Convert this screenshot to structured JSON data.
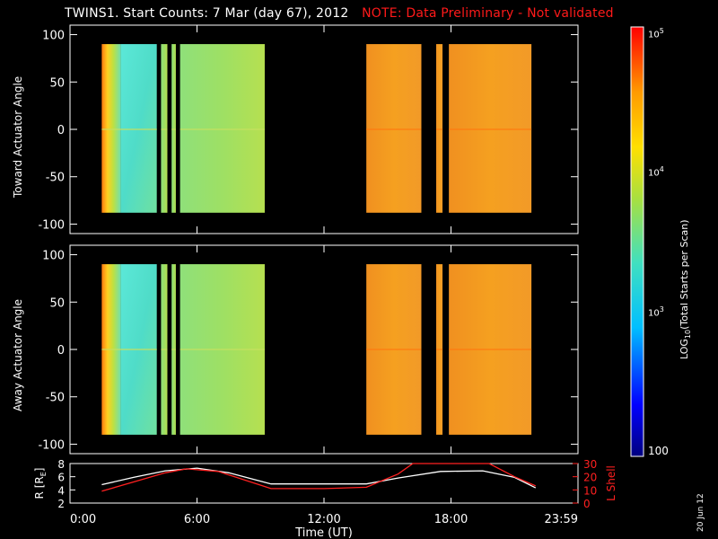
{
  "title": {
    "main": "TWINS1. Start Counts:  7 Mar (day  67), 2012",
    "note": "NOTE: Data Preliminary - Not validated",
    "note_color": "#ff1a1a"
  },
  "date_stamp": "20 Jun 12",
  "colorbar": {
    "label": "LOG10(Total Starts per Scan)",
    "tick_labels": [
      "10^5",
      "10^4",
      "10^3",
      "100"
    ],
    "scale": "log",
    "range": [
      100,
      100000
    ]
  },
  "chart_data": [
    {
      "type": "heatmap",
      "name": "toward",
      "ylabel": "Toward Actuator Angle",
      "ylim": [
        -110,
        110
      ],
      "yticks": [
        100,
        50,
        0,
        -50,
        -100
      ],
      "x_unit": "hours UT",
      "xlim": [
        0,
        24
      ],
      "angle_coverage": [
        -88,
        90
      ],
      "data_blocks": [
        {
          "start": 1.5,
          "end": 2.4,
          "level": "green-red mixed"
        },
        {
          "start": 2.4,
          "end": 4.1,
          "level": "cyan"
        },
        {
          "start": 4.3,
          "end": 4.6,
          "level": "green"
        },
        {
          "start": 4.8,
          "end": 5.0,
          "level": "green"
        },
        {
          "start": 5.2,
          "end": 9.2,
          "level": "green"
        },
        {
          "start": 14.0,
          "end": 16.6,
          "level": "orange"
        },
        {
          "start": 17.3,
          "end": 17.6,
          "level": "orange"
        },
        {
          "start": 17.9,
          "end": 21.8,
          "level": "orange"
        }
      ]
    },
    {
      "type": "heatmap",
      "name": "away",
      "ylabel": "Away Actuator Angle",
      "ylim": [
        -110,
        110
      ],
      "yticks": [
        100,
        50,
        0,
        -50,
        -100
      ],
      "x_unit": "hours UT",
      "xlim": [
        0,
        24
      ],
      "angle_coverage": [
        -90,
        90
      ],
      "data_blocks": [
        {
          "start": 1.5,
          "end": 2.4,
          "level": "green-red mixed"
        },
        {
          "start": 2.4,
          "end": 4.1,
          "level": "cyan"
        },
        {
          "start": 4.3,
          "end": 4.6,
          "level": "green"
        },
        {
          "start": 4.8,
          "end": 5.0,
          "level": "green"
        },
        {
          "start": 5.2,
          "end": 9.2,
          "level": "green"
        },
        {
          "start": 14.0,
          "end": 16.6,
          "level": "orange"
        },
        {
          "start": 17.3,
          "end": 17.6,
          "level": "orange"
        },
        {
          "start": 17.9,
          "end": 21.8,
          "level": "orange"
        }
      ]
    },
    {
      "type": "line",
      "name": "orbit",
      "xlabel": "Time (UT)",
      "xlim": [
        0,
        24
      ],
      "xtick_labels": [
        "0:00",
        "6:00",
        "12:00",
        "18:00",
        "23:59"
      ],
      "xticks": [
        0,
        6,
        12,
        18,
        24
      ],
      "left_axis": {
        "label": "R [RE]",
        "ylim": [
          2,
          8
        ],
        "ticks": [
          2,
          4,
          6,
          8
        ]
      },
      "right_axis": {
        "label": "L Shell",
        "ylim": [
          0,
          30
        ],
        "ticks": [
          0,
          10,
          20,
          30
        ]
      },
      "series": [
        {
          "axis": "left",
          "color": "#ffffff",
          "x": [
            1.5,
            3.0,
            4.5,
            6.0,
            7.5,
            9.5,
            12.0,
            14.0,
            15.5,
            17.5,
            19.5,
            21.0,
            22.0
          ],
          "y": [
            4.8,
            5.9,
            6.9,
            7.3,
            6.6,
            4.9,
            4.9,
            4.9,
            5.8,
            6.8,
            6.9,
            5.9,
            4.3
          ]
        },
        {
          "axis": "right",
          "color": "#ff2020",
          "x": [
            1.5,
            3.0,
            4.5,
            5.5,
            7.0,
            9.5,
            12.0,
            14.0,
            15.5,
            16.2,
            19.8,
            21.0,
            22.0
          ],
          "y": [
            9,
            16,
            23,
            26,
            24,
            11,
            11,
            12,
            22,
            32,
            32,
            20,
            13
          ]
        }
      ]
    }
  ]
}
